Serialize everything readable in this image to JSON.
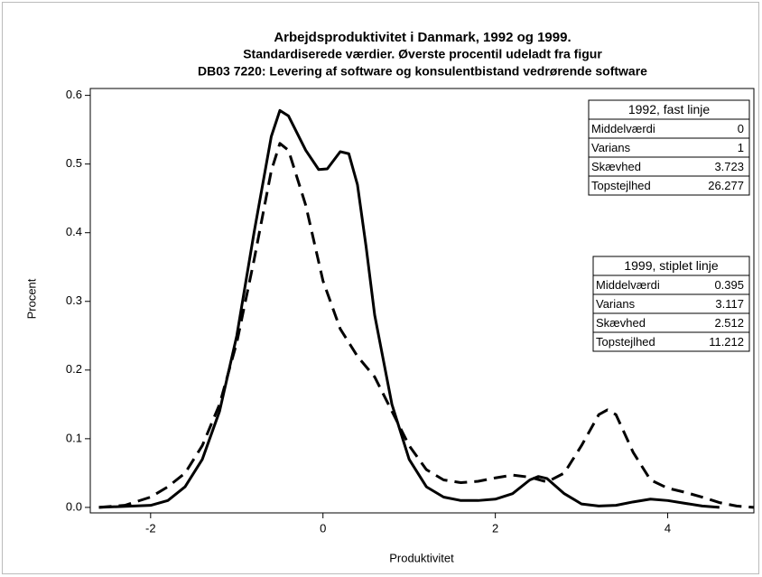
{
  "chart_data": {
    "type": "line",
    "title": "Arbejdsproduktivitet i Danmark, 1992 og 1999.",
    "subtitle": "Standardiserede værdier. Øverste procentil udeladt fra figur",
    "subtitle2": "DB03 7220: Levering af software og konsulentbistand vedrørende software",
    "x_label": "Produktivitet",
    "y_label": "Procent",
    "xlim": [
      -2.7,
      5.0
    ],
    "ylim": [
      -0.008,
      0.61
    ],
    "xticks": [
      -2,
      0,
      2,
      4
    ],
    "yticks": [
      {
        "value": 0,
        "label": "0.0"
      },
      0.1,
      0.2,
      0.3,
      0.4,
      0.5,
      0.6
    ],
    "series": [
      {
        "name": "1992, fast linje",
        "color": "#000000",
        "dashed": false,
        "x": [
          -2.6,
          -2.0,
          -1.8,
          -1.6,
          -1.4,
          -1.2,
          -1.0,
          -0.8,
          -0.6,
          -0.5,
          -0.4,
          -0.2,
          -0.05,
          0.05,
          0.2,
          0.3,
          0.4,
          0.5,
          0.6,
          0.8,
          1.0,
          1.2,
          1.4,
          1.6,
          1.8,
          2.0,
          2.2,
          2.4,
          2.5,
          2.6,
          2.8,
          3.0,
          3.2,
          3.4,
          3.6,
          3.8,
          4.0,
          4.2,
          4.4,
          4.6
        ],
        "values": [
          0.0,
          0.003,
          0.01,
          0.03,
          0.07,
          0.14,
          0.25,
          0.4,
          0.54,
          0.578,
          0.57,
          0.52,
          0.492,
          0.493,
          0.518,
          0.515,
          0.47,
          0.38,
          0.28,
          0.15,
          0.07,
          0.03,
          0.015,
          0.01,
          0.01,
          0.012,
          0.02,
          0.04,
          0.045,
          0.042,
          0.02,
          0.005,
          0.002,
          0.003,
          0.008,
          0.012,
          0.01,
          0.006,
          0.002,
          0.0
        ],
        "stats": [
          {
            "label": "Middelværdi",
            "value": 0
          },
          {
            "label": "Varians",
            "value": 1
          },
          {
            "label": "Skævhed",
            "value": 3.723
          },
          {
            "label": "Topstejlhed",
            "value": 26.277
          }
        ]
      },
      {
        "name": "1999, stiplet linje",
        "color": "#000000",
        "dashed": true,
        "x": [
          -2.6,
          -2.3,
          -2.0,
          -1.8,
          -1.6,
          -1.4,
          -1.2,
          -1.0,
          -0.8,
          -0.6,
          -0.5,
          -0.4,
          -0.2,
          0.0,
          0.2,
          0.4,
          0.6,
          0.8,
          1.0,
          1.2,
          1.4,
          1.6,
          1.8,
          2.0,
          2.2,
          2.4,
          2.6,
          2.8,
          3.0,
          3.2,
          3.3,
          3.4,
          3.6,
          3.8,
          4.0,
          4.2,
          4.4,
          4.6,
          4.8,
          5.0
        ],
        "values": [
          0.0,
          0.003,
          0.015,
          0.03,
          0.05,
          0.09,
          0.15,
          0.24,
          0.36,
          0.49,
          0.53,
          0.52,
          0.44,
          0.33,
          0.26,
          0.22,
          0.19,
          0.14,
          0.09,
          0.055,
          0.04,
          0.036,
          0.038,
          0.043,
          0.047,
          0.044,
          0.037,
          0.05,
          0.09,
          0.135,
          0.142,
          0.135,
          0.08,
          0.04,
          0.028,
          0.022,
          0.015,
          0.007,
          0.002,
          0.0
        ],
        "stats": [
          {
            "label": "Middelværdi",
            "value": 0.395
          },
          {
            "label": "Varians",
            "value": 3.117
          },
          {
            "label": "Skævhed",
            "value": 2.512
          },
          {
            "label": "Topstejlhed",
            "value": 11.212
          }
        ]
      }
    ]
  }
}
